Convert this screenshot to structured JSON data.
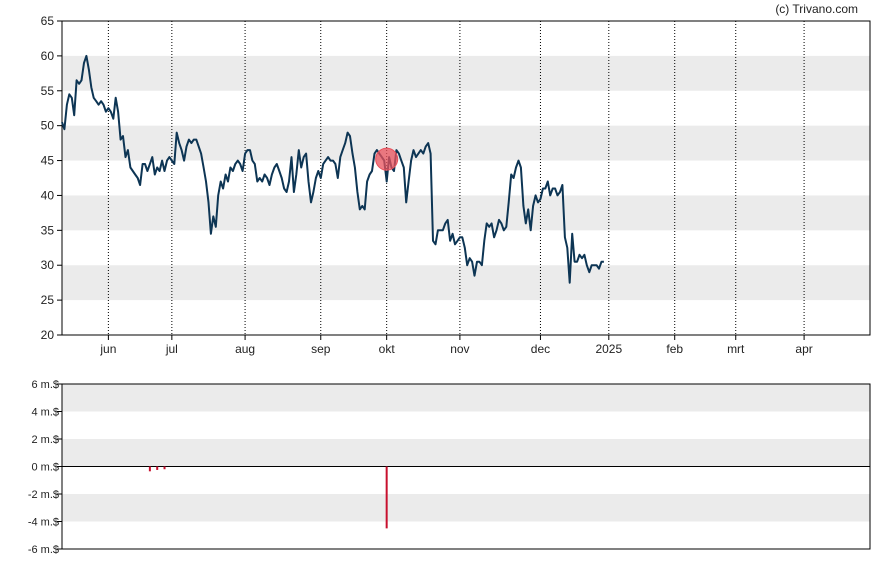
{
  "copyright": "(c) Trivano.com",
  "colors": {
    "line": "#0d3554",
    "band": "#ebebeb",
    "axis": "#000000",
    "grid": "#000000",
    "marker": "#e8505b",
    "volume": "#c8102e"
  },
  "chart_data": [
    {
      "type": "line",
      "title": "",
      "xlabel": "",
      "ylabel": "",
      "ylim": [
        20,
        65
      ],
      "yticks": [
        "20",
        "25",
        "30",
        "35",
        "40",
        "45",
        "50",
        "55",
        "60",
        "65"
      ],
      "xlim": [
        0,
        331
      ],
      "xticks": [
        {
          "label": "jun",
          "x": 19
        },
        {
          "label": "jul",
          "x": 45
        },
        {
          "label": "aug",
          "x": 75
        },
        {
          "label": "sep",
          "x": 106
        },
        {
          "label": "okt",
          "x": 133
        },
        {
          "label": "nov",
          "x": 163
        },
        {
          "label": "dec",
          "x": 196
        },
        {
          "label": "2025",
          "x": 224
        },
        {
          "label": "feb",
          "x": 251
        },
        {
          "label": "mrt",
          "x": 276
        },
        {
          "label": "apr",
          "x": 304
        }
      ],
      "series": [
        {
          "name": "",
          "points": [
            [
              0,
              50.5
            ],
            [
              1,
              49.5
            ],
            [
              2,
              53
            ],
            [
              3,
              54.5
            ],
            [
              4,
              54
            ],
            [
              5,
              51.5
            ],
            [
              6,
              56.5
            ],
            [
              7,
              56
            ],
            [
              8,
              56.5
            ],
            [
              9,
              59
            ],
            [
              10,
              60
            ],
            [
              11,
              58
            ],
            [
              12,
              55.5
            ],
            [
              13,
              54
            ],
            [
              14,
              53.5
            ],
            [
              15,
              53
            ],
            [
              16,
              53.5
            ],
            [
              17,
              53
            ],
            [
              18,
              52
            ],
            [
              19,
              52.5
            ],
            [
              20,
              52
            ],
            [
              21,
              51
            ],
            [
              22,
              54
            ],
            [
              23,
              52
            ],
            [
              24,
              48
            ],
            [
              25,
              48.5
            ],
            [
              26,
              45.5
            ],
            [
              27,
              46.5
            ],
            [
              28,
              44
            ],
            [
              29,
              43.5
            ],
            [
              30,
              43
            ],
            [
              31,
              42.5
            ],
            [
              32,
              41.5
            ],
            [
              33,
              44.5
            ],
            [
              34,
              44.5
            ],
            [
              35,
              43.5
            ],
            [
              36,
              44.5
            ],
            [
              37,
              45.5
            ],
            [
              38,
              43
            ],
            [
              39,
              44
            ],
            [
              40,
              43.5
            ],
            [
              41,
              45
            ],
            [
              42,
              43.5
            ],
            [
              43,
              45
            ],
            [
              44,
              45.5
            ],
            [
              45,
              45
            ],
            [
              46,
              44.5
            ],
            [
              47,
              49
            ],
            [
              48,
              47.5
            ],
            [
              49,
              46.5
            ],
            [
              50,
              45
            ],
            [
              51,
              47
            ],
            [
              52,
              48
            ],
            [
              53,
              47.5
            ],
            [
              54,
              48
            ],
            [
              55,
              48
            ],
            [
              56,
              47
            ],
            [
              57,
              46
            ],
            [
              58,
              44
            ],
            [
              59,
              42
            ],
            [
              60,
              39
            ],
            [
              61,
              34.5
            ],
            [
              62,
              37
            ],
            [
              63,
              35.5
            ],
            [
              64,
              40
            ],
            [
              65,
              42
            ],
            [
              66,
              41
            ],
            [
              67,
              43
            ],
            [
              68,
              42
            ],
            [
              69,
              44
            ],
            [
              70,
              43.5
            ],
            [
              71,
              44.5
            ],
            [
              72,
              45
            ],
            [
              73,
              44.5
            ],
            [
              74,
              43.5
            ],
            [
              75,
              46
            ],
            [
              76,
              46.5
            ],
            [
              77,
              46.5
            ],
            [
              78,
              45
            ],
            [
              79,
              44.5
            ],
            [
              80,
              42
            ],
            [
              81,
              42.5
            ],
            [
              82,
              42
            ],
            [
              83,
              43
            ],
            [
              84,
              42.5
            ],
            [
              85,
              41.5
            ],
            [
              86,
              43
            ],
            [
              87,
              44
            ],
            [
              88,
              44.5
            ],
            [
              89,
              43.5
            ],
            [
              90,
              42.5
            ],
            [
              91,
              41
            ],
            [
              92,
              40.5
            ],
            [
              93,
              42
            ],
            [
              94,
              45.5
            ],
            [
              95,
              40.5
            ],
            [
              96,
              43
            ],
            [
              97,
              46.5
            ],
            [
              98,
              44
            ],
            [
              99,
              45.5
            ],
            [
              100,
              46
            ],
            [
              101,
              42
            ],
            [
              102,
              39
            ],
            [
              103,
              40.5
            ],
            [
              104,
              42.5
            ],
            [
              105,
              43.5
            ],
            [
              106,
              42.5
            ],
            [
              107,
              44.5
            ],
            [
              108,
              45
            ],
            [
              109,
              45.5
            ],
            [
              110,
              45
            ],
            [
              111,
              45
            ],
            [
              112,
              44.5
            ],
            [
              113,
              42.5
            ],
            [
              114,
              45.5
            ],
            [
              115,
              46.5
            ],
            [
              116,
              47.5
            ],
            [
              117,
              49
            ],
            [
              118,
              48.5
            ],
            [
              119,
              46
            ],
            [
              120,
              44
            ],
            [
              121,
              40.5
            ],
            [
              122,
              38
            ],
            [
              123,
              38.5
            ],
            [
              124,
              38
            ],
            [
              125,
              42
            ],
            [
              126,
              43
            ],
            [
              127,
              43.5
            ],
            [
              128,
              46
            ],
            [
              129,
              46.5
            ],
            [
              130,
              46
            ],
            [
              131,
              45.5
            ],
            [
              132,
              45
            ],
            [
              133,
              42
            ],
            [
              134,
              45.5
            ],
            [
              135,
              44
            ],
            [
              136,
              43.5
            ],
            [
              137,
              46.5
            ],
            [
              138,
              46
            ],
            [
              139,
              45
            ],
            [
              140,
              44
            ],
            [
              141,
              39
            ],
            [
              142,
              42
            ],
            [
              143,
              45
            ],
            [
              144,
              46.5
            ],
            [
              145,
              45.5
            ],
            [
              146,
              46
            ],
            [
              147,
              46.5
            ],
            [
              148,
              46
            ],
            [
              149,
              47
            ],
            [
              150,
              47.5
            ],
            [
              151,
              46
            ],
            [
              152,
              33.5
            ],
            [
              153,
              33
            ],
            [
              154,
              35
            ],
            [
              155,
              35
            ],
            [
              156,
              35
            ],
            [
              157,
              36
            ],
            [
              158,
              36.5
            ],
            [
              159,
              33.5
            ],
            [
              160,
              34.5
            ],
            [
              161,
              33
            ],
            [
              162,
              33.5
            ],
            [
              163,
              34
            ],
            [
              164,
              34
            ],
            [
              165,
              32.5
            ],
            [
              166,
              30
            ],
            [
              167,
              31
            ],
            [
              168,
              30.5
            ],
            [
              169,
              28.5
            ],
            [
              170,
              30.5
            ],
            [
              171,
              30.5
            ],
            [
              172,
              30
            ],
            [
              173,
              33.5
            ],
            [
              174,
              36
            ],
            [
              175,
              35.5
            ],
            [
              176,
              36
            ],
            [
              177,
              34
            ],
            [
              178,
              35
            ],
            [
              179,
              36.5
            ],
            [
              180,
              36
            ],
            [
              181,
              35
            ],
            [
              182,
              35.5
            ],
            [
              183,
              39
            ],
            [
              184,
              43
            ],
            [
              185,
              42.5
            ],
            [
              186,
              44
            ],
            [
              187,
              45
            ],
            [
              188,
              44
            ],
            [
              189,
              38.5
            ],
            [
              190,
              36
            ],
            [
              191,
              38
            ],
            [
              192,
              35
            ],
            [
              193,
              38.5
            ],
            [
              194,
              40
            ],
            [
              195,
              39
            ],
            [
              196,
              39.5
            ],
            [
              197,
              41
            ],
            [
              198,
              41
            ],
            [
              199,
              42
            ],
            [
              200,
              40
            ],
            [
              201,
              41
            ],
            [
              202,
              41
            ],
            [
              203,
              40
            ],
            [
              204,
              40.5
            ],
            [
              205,
              41.5
            ],
            [
              206,
              34
            ],
            [
              207,
              32.5
            ],
            [
              208,
              27.5
            ],
            [
              209,
              34.5
            ],
            [
              210,
              30.5
            ],
            [
              211,
              30.5
            ],
            [
              212,
              31.5
            ],
            [
              213,
              31
            ],
            [
              214,
              31.5
            ],
            [
              215,
              30
            ],
            [
              216,
              29
            ],
            [
              217,
              30
            ],
            [
              218,
              30
            ],
            [
              219,
              30
            ],
            [
              220,
              29.5
            ],
            [
              221,
              30.5
            ],
            [
              222,
              30.5
            ]
          ]
        }
      ],
      "annotations": [
        {
          "type": "marker",
          "x": 133,
          "y": 45.2
        }
      ]
    },
    {
      "type": "bar",
      "title": "",
      "xlabel": "",
      "ylabel": "",
      "ylim": [
        -6,
        6
      ],
      "yticks": [
        "6 m.$",
        "4 m.$",
        "2 m.$",
        "0 m.$",
        "-2 m.$",
        "-4 m.$",
        "-6 m.$"
      ],
      "series": [
        {
          "name": "",
          "points": [
            [
              36,
              -0.35
            ],
            [
              39,
              -0.25
            ],
            [
              42,
              -0.2
            ],
            [
              133,
              -4.5
            ]
          ]
        }
      ]
    }
  ]
}
